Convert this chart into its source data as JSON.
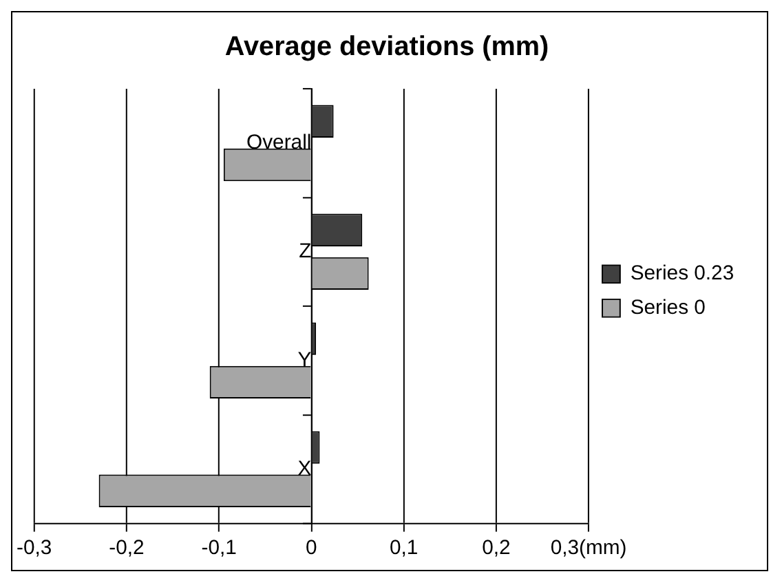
{
  "chart_data": {
    "type": "bar",
    "orientation": "horizontal",
    "title": "Average deviations (mm)",
    "categories": [
      "Overall",
      "Z",
      "Y",
      "X"
    ],
    "series": [
      {
        "name": "Series 0.23",
        "color": "#404040",
        "values": [
          0.024,
          0.055,
          0.005,
          0.009
        ]
      },
      {
        "name": "Series 0",
        "color": "#a6a6a6",
        "values": [
          -0.095,
          0.062,
          -0.11,
          -0.23
        ]
      }
    ],
    "xlim": [
      -0.3,
      0.3
    ],
    "xticks": [
      {
        "value": -0.3,
        "label": "-0,3"
      },
      {
        "value": -0.2,
        "label": "-0,2"
      },
      {
        "value": -0.1,
        "label": "-0,1"
      },
      0,
      {
        "value": 0.1,
        "label": "0,1"
      },
      {
        "value": 0.2,
        "label": "0,2"
      },
      {
        "value": 0.3,
        "label": "0,3(mm)"
      }
    ],
    "grid": "x",
    "legend": "right"
  }
}
